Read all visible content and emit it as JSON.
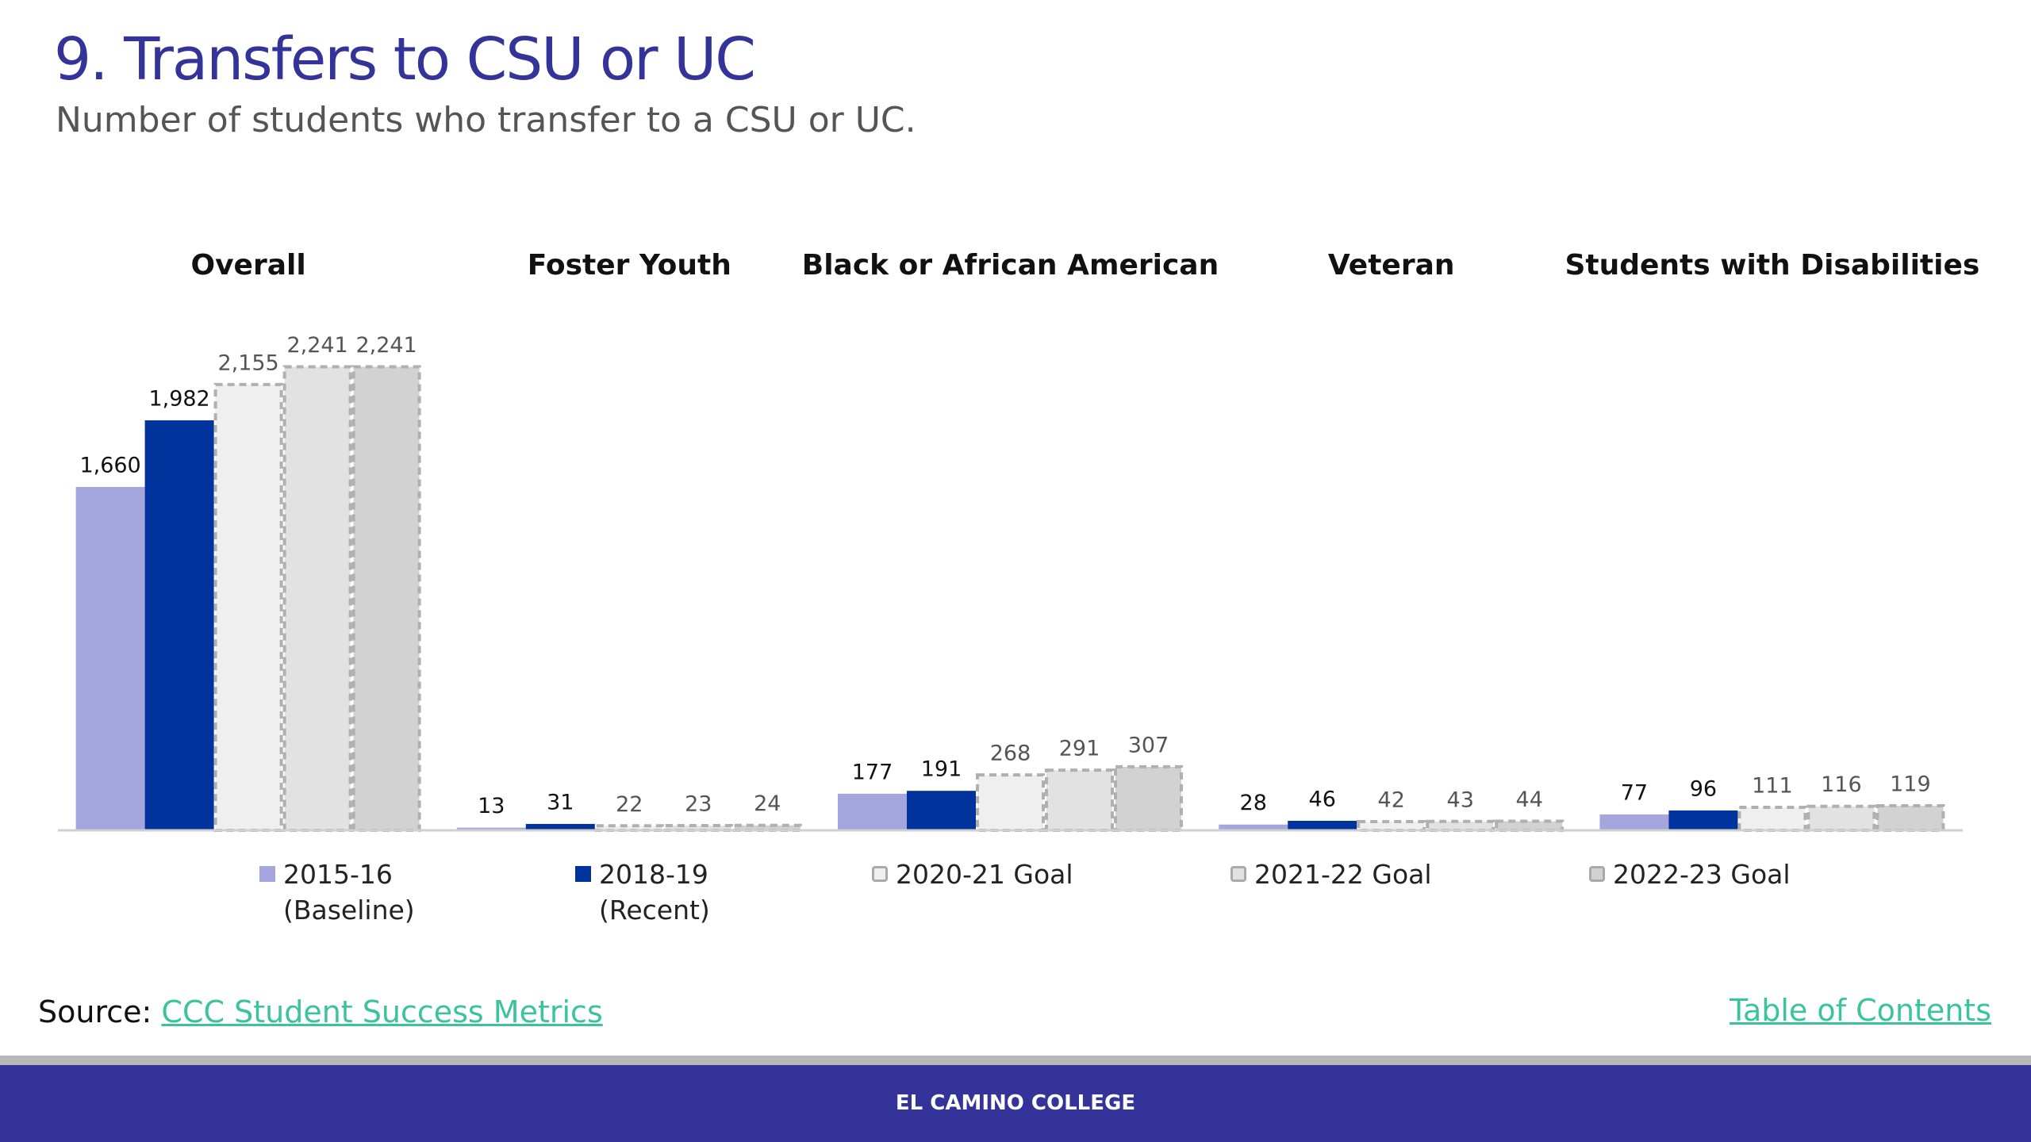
{
  "header": {
    "title": "9. Transfers to CSU or UC",
    "subtitle": "Number of students who transfer to a CSU or UC."
  },
  "chart_data": {
    "type": "bar",
    "categories": [
      "Overall",
      "Foster Youth",
      "Black or African American",
      "Veteran",
      "Students with Disabilities"
    ],
    "ylim": [
      0,
      2400
    ],
    "series": [
      {
        "name": "2015-16 (Baseline)",
        "color": "#a6a6de",
        "border": "none",
        "values": [
          1660,
          13,
          177,
          28,
          77
        ],
        "value_labels": [
          "1,660",
          "13",
          "177",
          "28",
          "77"
        ]
      },
      {
        "name": "2018-19 (Recent)",
        "color": "#00349c",
        "border": "none",
        "values": [
          1982,
          31,
          191,
          46,
          96
        ],
        "value_labels": [
          "1,982",
          "31",
          "191",
          "46",
          "96"
        ]
      },
      {
        "name": "2020-21 Goal",
        "color": "#efefef",
        "border": "dashed",
        "values": [
          2155,
          22,
          268,
          42,
          111
        ],
        "value_labels": [
          "2,155",
          "22",
          "268",
          "42",
          "111"
        ]
      },
      {
        "name": "2021-22 Goal",
        "color": "#e2e2e2",
        "border": "dashed",
        "values": [
          2241,
          23,
          291,
          43,
          116
        ],
        "value_labels": [
          "2,241",
          "23",
          "291",
          "43",
          "116"
        ]
      },
      {
        "name": "2022-23 Goal",
        "color": "#d2d2d2",
        "border": "dashed",
        "values": [
          2241,
          24,
          307,
          44,
          119
        ],
        "value_labels": [
          "2,241",
          "24",
          "307",
          "44",
          "119"
        ]
      }
    ]
  },
  "footer": {
    "source_label": "Source:",
    "source_link": "CCC Student Success Metrics",
    "toc_link": "Table of Contents",
    "college": "EL CAMINO COLLEGE"
  }
}
